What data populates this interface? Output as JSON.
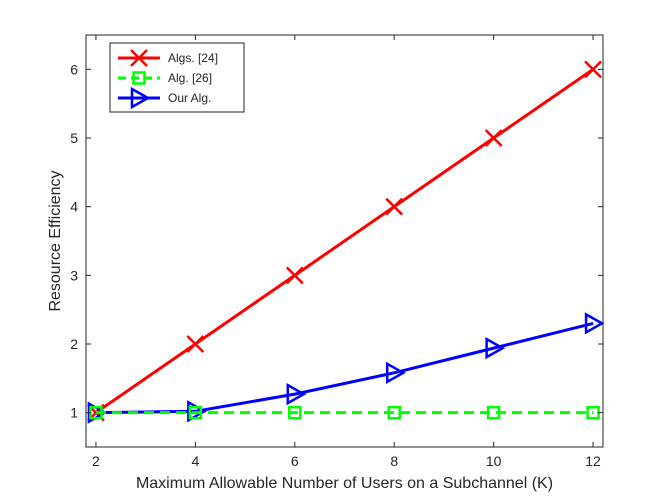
{
  "chart_data": {
    "type": "line",
    "title": "",
    "xlabel": "Maximum Allowable Number of Users on a Subchannel (K)",
    "ylabel": "Resource Efficiency",
    "xlim": [
      1.8,
      12.2
    ],
    "ylim": [
      0.5,
      6.5
    ],
    "x_ticks": [
      2,
      4,
      6,
      8,
      10,
      12
    ],
    "y_ticks": [
      1,
      2,
      3,
      4,
      5,
      6
    ],
    "grid": false,
    "legend_position": "top-left",
    "x": [
      2,
      4,
      6,
      8,
      10,
      12
    ],
    "series": [
      {
        "name": "Algs. [24]",
        "values": [
          1,
          2,
          3,
          4,
          5,
          6
        ],
        "color": "#ff0000",
        "line_style": "solid",
        "marker": "x"
      },
      {
        "name": "Alg. [26]",
        "values": [
          1,
          1,
          1,
          1,
          1,
          1
        ],
        "color": "#00ff00",
        "line_style": "dashed",
        "marker": "square"
      },
      {
        "name": "Our Alg.",
        "values": [
          1,
          1.02,
          1.27,
          1.58,
          1.94,
          2.3
        ],
        "color": "#0000ff",
        "line_style": "solid",
        "marker": "triangle-right"
      }
    ]
  }
}
